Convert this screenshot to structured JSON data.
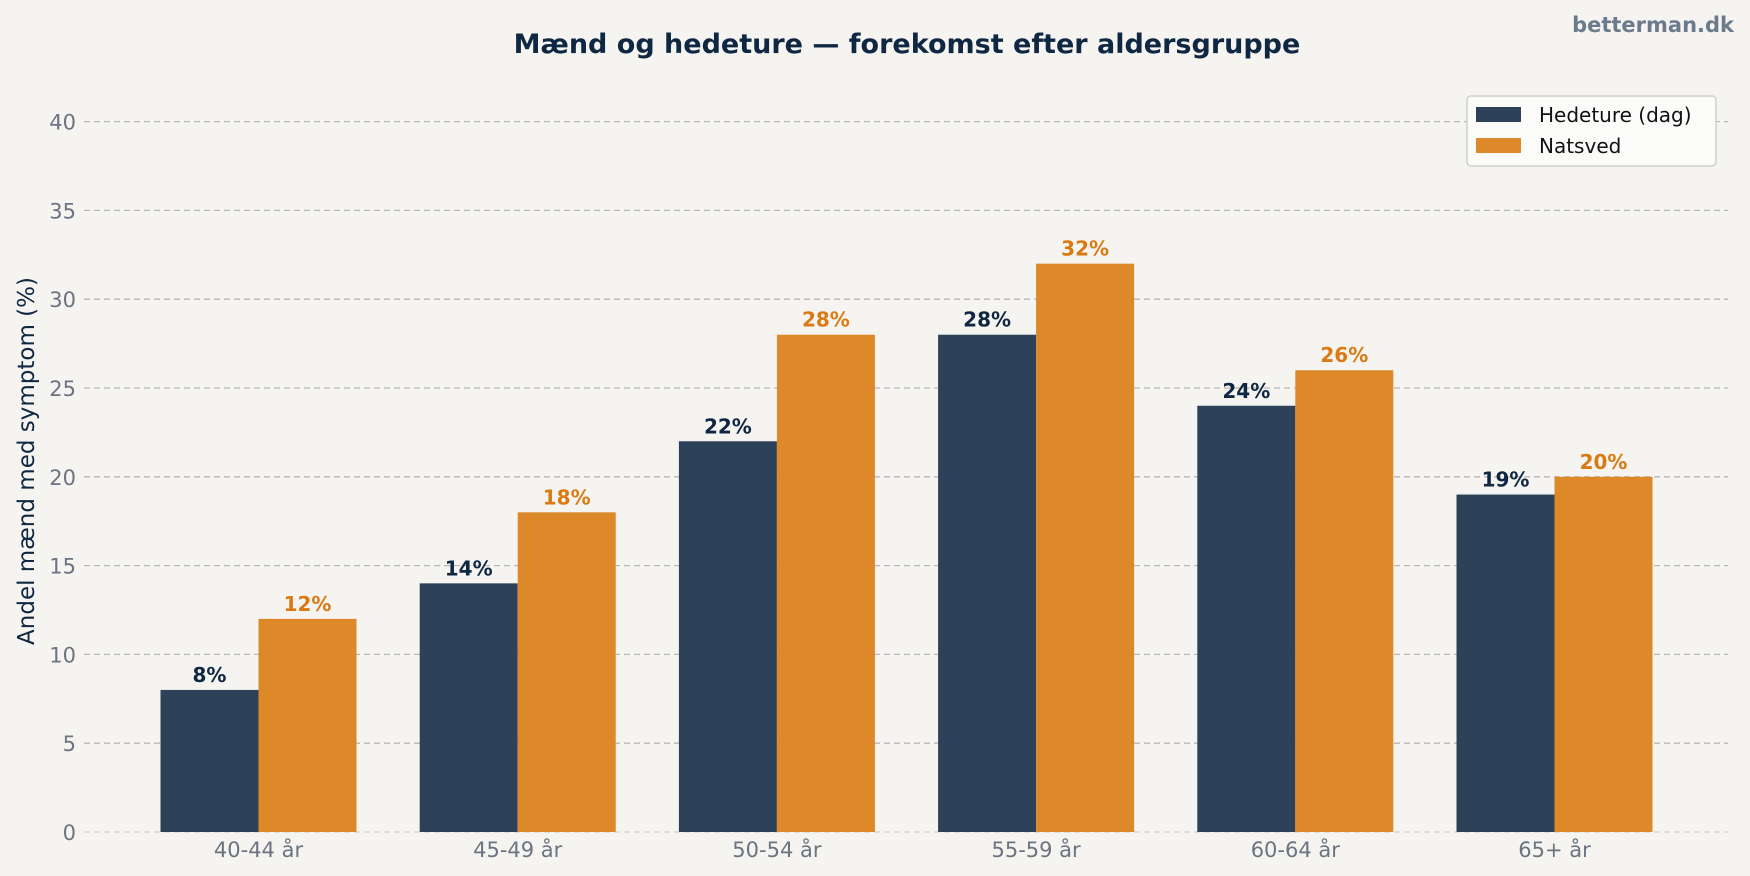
{
  "brand": "betterman.dk",
  "colors": {
    "series1": "#2d4259",
    "series2": "#dd8829",
    "label1": "#0f2742",
    "label2": "#d97a14",
    "grid": "#b9b9b9",
    "background": "#f5f4f0"
  },
  "chart_data": {
    "type": "bar",
    "title": "Mænd og hedeture — forekomst efter aldersgruppe",
    "xlabel": "",
    "ylabel": "Andel mænd med symptom (%)",
    "ylim": [
      0,
      42
    ],
    "yticks": [
      0,
      5,
      10,
      15,
      20,
      25,
      30,
      35,
      40
    ],
    "grid": true,
    "legend": "top-right",
    "categories": [
      "40-44 år",
      "45-49 år",
      "50-54 år",
      "55-59 år",
      "60-64 år",
      "65+ år"
    ],
    "series": [
      {
        "name": "Hedeture (dag)",
        "values": [
          8,
          14,
          22,
          28,
          24,
          19
        ],
        "labels": [
          "8%",
          "14%",
          "22%",
          "28%",
          "24%",
          "19%"
        ]
      },
      {
        "name": "Natsved",
        "values": [
          12,
          18,
          28,
          32,
          26,
          20
        ],
        "labels": [
          "12%",
          "18%",
          "28%",
          "32%",
          "26%",
          "20%"
        ]
      }
    ]
  }
}
